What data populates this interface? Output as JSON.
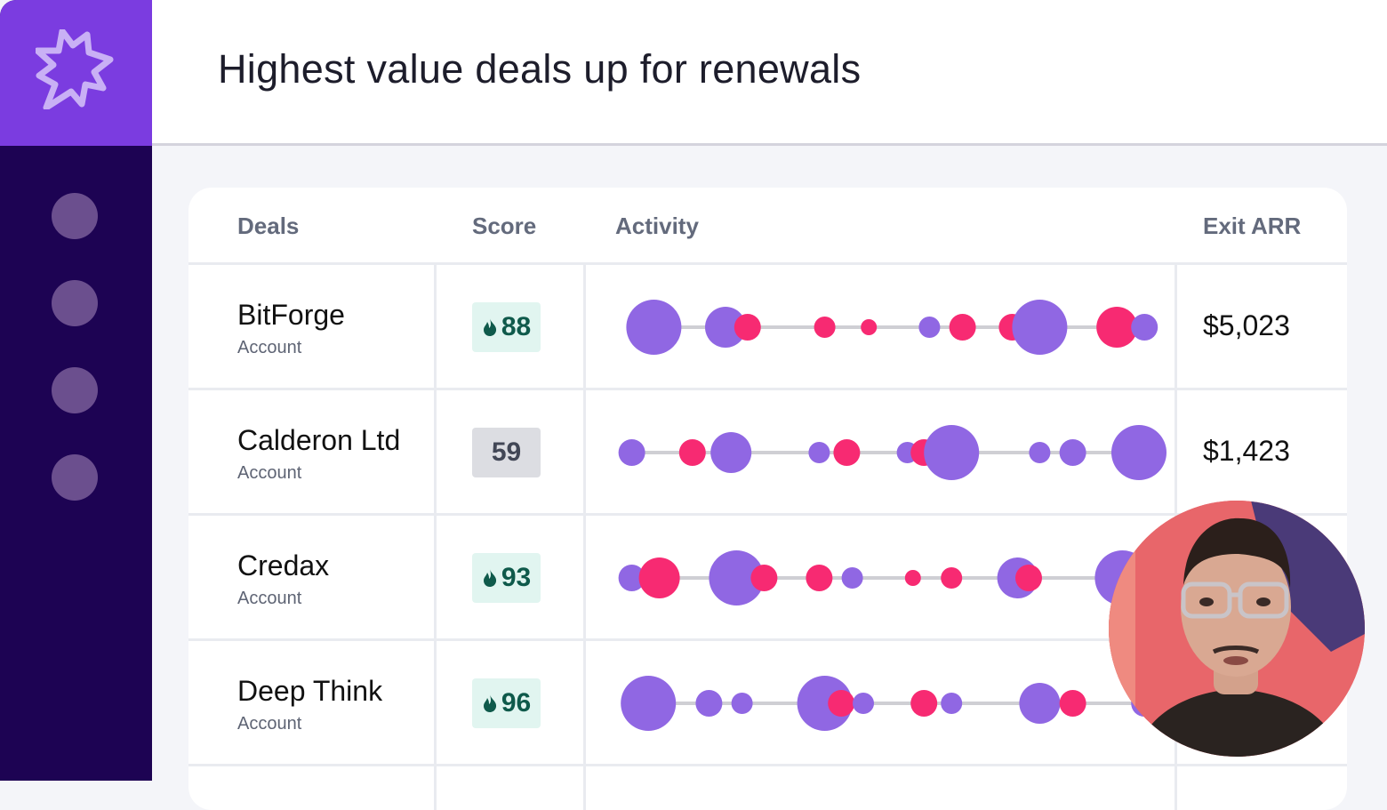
{
  "header": {
    "title": "Highest value deals up for renewals"
  },
  "sidebar": {
    "logo_icon": "burst-star-icon",
    "nav_items": [
      "nav-item-1",
      "nav-item-2",
      "nav-item-3",
      "nav-item-4"
    ]
  },
  "table": {
    "columns": {
      "deals": "Deals",
      "score": "Score",
      "activity": "Activity",
      "exit_arr": "Exit ARR"
    },
    "rows": [
      {
        "name": "BitForge",
        "type": "Account",
        "score": "88",
        "hot": true,
        "exit_arr": "$5,023",
        "activity": [
          {
            "t": 0.07,
            "s": "lg",
            "c": "purple"
          },
          {
            "t": 0.2,
            "s": "md",
            "c": "purple"
          },
          {
            "t": 0.24,
            "s": "sm",
            "c": "pink"
          },
          {
            "t": 0.38,
            "s": "xs",
            "c": "pink"
          },
          {
            "t": 0.46,
            "s": "xxs",
            "c": "pink"
          },
          {
            "t": 0.57,
            "s": "xs",
            "c": "purple"
          },
          {
            "t": 0.63,
            "s": "sm",
            "c": "pink"
          },
          {
            "t": 0.72,
            "s": "sm",
            "c": "pink"
          },
          {
            "t": 0.77,
            "s": "lg",
            "c": "purple"
          },
          {
            "t": 0.91,
            "s": "md",
            "c": "pink"
          },
          {
            "t": 0.96,
            "s": "sm",
            "c": "purple"
          }
        ]
      },
      {
        "name": "Calderon Ltd",
        "type": "Account",
        "score": "59",
        "hot": false,
        "exit_arr": "$1,423",
        "activity": [
          {
            "t": 0.03,
            "s": "sm",
            "c": "purple"
          },
          {
            "t": 0.14,
            "s": "sm",
            "c": "pink"
          },
          {
            "t": 0.21,
            "s": "md",
            "c": "purple"
          },
          {
            "t": 0.37,
            "s": "xs",
            "c": "purple"
          },
          {
            "t": 0.42,
            "s": "sm",
            "c": "pink"
          },
          {
            "t": 0.53,
            "s": "xs",
            "c": "purple"
          },
          {
            "t": 0.56,
            "s": "sm",
            "c": "pink"
          },
          {
            "t": 0.61,
            "s": "lg",
            "c": "purple"
          },
          {
            "t": 0.77,
            "s": "xs",
            "c": "purple"
          },
          {
            "t": 0.83,
            "s": "sm",
            "c": "purple"
          },
          {
            "t": 0.95,
            "s": "lg",
            "c": "purple"
          }
        ]
      },
      {
        "name": "Credax",
        "type": "Account",
        "score": "93",
        "hot": true,
        "exit_arr": "",
        "activity": [
          {
            "t": 0.03,
            "s": "sm",
            "c": "purple"
          },
          {
            "t": 0.08,
            "s": "md",
            "c": "pink"
          },
          {
            "t": 0.22,
            "s": "lg",
            "c": "purple"
          },
          {
            "t": 0.27,
            "s": "sm",
            "c": "pink"
          },
          {
            "t": 0.37,
            "s": "sm",
            "c": "pink"
          },
          {
            "t": 0.43,
            "s": "xs",
            "c": "purple"
          },
          {
            "t": 0.54,
            "s": "xxs",
            "c": "pink"
          },
          {
            "t": 0.61,
            "s": "xs",
            "c": "pink"
          },
          {
            "t": 0.73,
            "s": "md",
            "c": "purple"
          },
          {
            "t": 0.75,
            "s": "sm",
            "c": "pink"
          },
          {
            "t": 0.92,
            "s": "lg",
            "c": "purple"
          }
        ]
      },
      {
        "name": "Deep Think",
        "type": "Account",
        "score": "96",
        "hot": true,
        "exit_arr": "",
        "activity": [
          {
            "t": 0.06,
            "s": "lg",
            "c": "purple"
          },
          {
            "t": 0.17,
            "s": "sm",
            "c": "purple"
          },
          {
            "t": 0.23,
            "s": "xs",
            "c": "purple"
          },
          {
            "t": 0.38,
            "s": "lg",
            "c": "purple"
          },
          {
            "t": 0.41,
            "s": "sm",
            "c": "pink"
          },
          {
            "t": 0.45,
            "s": "xs",
            "c": "purple"
          },
          {
            "t": 0.56,
            "s": "sm",
            "c": "pink"
          },
          {
            "t": 0.61,
            "s": "xs",
            "c": "purple"
          },
          {
            "t": 0.77,
            "s": "md",
            "c": "purple"
          },
          {
            "t": 0.83,
            "s": "sm",
            "c": "pink"
          },
          {
            "t": 0.96,
            "s": "sm",
            "c": "purple"
          }
        ]
      }
    ]
  },
  "colors": {
    "purple": "#9067e3",
    "pink": "#f72a72",
    "track": "#cfcfd4"
  },
  "video_overlay": {
    "icon": "presenter-avatar"
  }
}
